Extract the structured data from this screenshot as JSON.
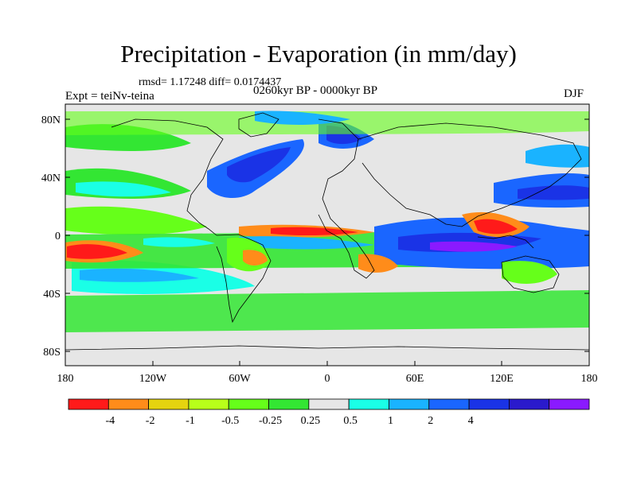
{
  "title": "Precipitation - Evaporation (in mm/day)",
  "stats": "rmsd= 1.17248 diff= 0.0174437",
  "experiment": "Expt = teiNv-teina",
  "period": "0260kyr BP - 0000kyr BP",
  "season": "DJF",
  "lat_ticks": [
    "80N",
    "40N",
    "0",
    "40S",
    "80S"
  ],
  "lon_ticks": [
    "180",
    "120W",
    "60W",
    "0",
    "60E",
    "120E",
    "180"
  ],
  "colorbar": {
    "colors": [
      "#ff1a1a",
      "#ff8c1a",
      "#e5d40f",
      "#b8ff1a",
      "#66ff1a",
      "#33e633",
      "#e6e6e6",
      "#1affe6",
      "#1ab3ff",
      "#1a66ff",
      "#1a33e6",
      "#2a1acc",
      "#8a1aff"
    ],
    "labels": [
      "-4",
      "-2",
      "-1",
      "-0.5",
      "-0.25",
      "0.25",
      "0.5",
      "1",
      "2",
      "4"
    ]
  },
  "chart_data": {
    "type": "heatmap",
    "title": "Precipitation - Evaporation (in mm/day)",
    "subtitle": "0260kyr BP - 0000kyr BP",
    "xlim": [
      -180,
      180
    ],
    "ylim": [
      -90,
      90
    ],
    "levels": [
      -4,
      -2,
      -1,
      -0.5,
      -0.25,
      0.25,
      0.5,
      1,
      2,
      4
    ]
  }
}
